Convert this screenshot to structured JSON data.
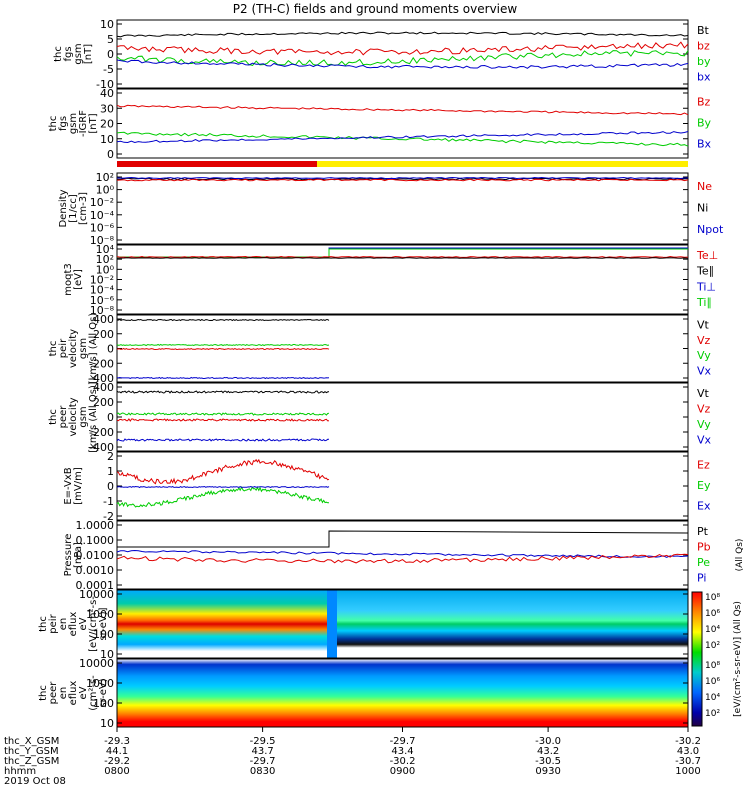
{
  "title": "P2 (TH-C) fields and ground moments overview",
  "colors": {
    "black": "#000000",
    "red": "#e00000",
    "green": "#00cc00",
    "blue": "#0000cc",
    "yellow": "#ffee00"
  },
  "panels": [
    {
      "ylabel": [
        "thc",
        "fgs",
        "gsm",
        "[nT]"
      ],
      "yticks": [
        "10",
        "5",
        "0",
        "-5",
        "-10"
      ],
      "ymin": -10,
      "ymax": 10,
      "legend": [
        {
          "text": "Bt",
          "color": "#000000"
        },
        {
          "text": "bz",
          "color": "#e00000"
        },
        {
          "text": "by",
          "color": "#00cc00"
        },
        {
          "text": "bx",
          "color": "#0000cc"
        }
      ]
    },
    {
      "ylabel": [
        "thc",
        "fgs",
        "gsm",
        "-IGRF",
        "[nT]"
      ],
      "yticks": [
        "40",
        "30",
        "20",
        "10",
        "0"
      ],
      "ymin": 0,
      "ymax": 40,
      "legend": [
        {
          "text": "Bz",
          "color": "#e00000"
        },
        {
          "text": "By",
          "color": "#00cc00"
        },
        {
          "text": "Bx",
          "color": "#0000cc"
        }
      ]
    },
    {
      "ylabel": [
        "Density",
        "[1/cc]",
        "[cm-3]"
      ],
      "yticks": [
        "10²",
        "10⁰",
        "10⁻²",
        "10⁻⁴",
        "10⁻⁶",
        "10⁻⁸"
      ],
      "legend": [
        {
          "text": "Ne",
          "color": "#e00000"
        },
        {
          "text": "Ni",
          "color": "#000000"
        },
        {
          "text": "Npot",
          "color": "#0000cc"
        }
      ]
    },
    {
      "ylabel": [
        "moqt3",
        "[eV]"
      ],
      "yticks": [
        "10⁴",
        "10²",
        "10⁰",
        "10⁻²",
        "10⁻⁴",
        "10⁻⁶",
        "10⁻⁸"
      ],
      "legend": [
        {
          "text": "Te⊥",
          "color": "#e00000"
        },
        {
          "text": "Te∥",
          "color": "#000000"
        },
        {
          "text": "Ti⊥",
          "color": "#0000cc"
        },
        {
          "text": "Ti∥",
          "color": "#00cc00"
        }
      ]
    },
    {
      "ylabel": [
        "thc",
        "peir",
        "velocity",
        "gsm",
        "[km/s] (All Qs)"
      ],
      "yticks": [
        "400",
        "200",
        "0",
        "-200",
        "-400"
      ],
      "legend": [
        {
          "text": "Vt",
          "color": "#000000"
        },
        {
          "text": "Vz",
          "color": "#e00000"
        },
        {
          "text": "Vy",
          "color": "#00cc00"
        },
        {
          "text": "Vx",
          "color": "#0000cc"
        }
      ]
    },
    {
      "ylabel": [
        "thc",
        "peer",
        "velocity",
        "gsm",
        "[km/s (All Qs)]"
      ],
      "yticks": [
        "400",
        "200",
        "0",
        "-200",
        "-400"
      ],
      "legend": [
        {
          "text": "Vt",
          "color": "#000000"
        },
        {
          "text": "Vz",
          "color": "#e00000"
        },
        {
          "text": "Vy",
          "color": "#00cc00"
        },
        {
          "text": "Vx",
          "color": "#0000cc"
        }
      ]
    },
    {
      "ylabel": [
        "E=-VxB",
        "[mV/m]"
      ],
      "yticks": [
        "2",
        "1",
        "0",
        "-1",
        "-2"
      ],
      "legend": [
        {
          "text": "Ez",
          "color": "#e00000"
        },
        {
          "text": "Ey",
          "color": "#00cc00"
        },
        {
          "text": "Ex",
          "color": "#0000cc"
        }
      ]
    },
    {
      "ylabel": [
        "Pressure",
        "[nPa]"
      ],
      "yticks": [
        "1.0000",
        "0.1000",
        "0.0100",
        "0.0010",
        "0.0001"
      ],
      "legend": [
        {
          "text": "Pt",
          "color": "#000000"
        },
        {
          "text": "Pb",
          "color": "#e00000"
        },
        {
          "text": "Pe",
          "color": "#00cc00"
        },
        {
          "text": "Pi",
          "color": "#0000cc"
        }
      ],
      "rightlabel": "(All Qs)"
    },
    {
      "ylabel": [
        "thc",
        "peir",
        "en",
        "eflux",
        "eV",
        "[eV/(cm²-s-",
        "sr-eV)]"
      ],
      "yticks": [
        "10000",
        "1000",
        "100",
        "10"
      ]
    },
    {
      "ylabel": [
        "thc",
        "peer",
        "en",
        "eflux",
        "eV",
        "(cm²-s-",
        "sr-eV)"
      ],
      "yticks": [
        "10000",
        "1000",
        "100",
        "10"
      ]
    }
  ],
  "colorbar": {
    "ticks_top": [
      "10⁸",
      "10⁶",
      "10⁴",
      "10²"
    ],
    "ticks_bottom": [
      "10⁸",
      "10⁶",
      "10⁴",
      "10²"
    ],
    "label": "[eV/(cm²-s-sr-eV)] (All Qs)"
  },
  "xaxis": {
    "rows": [
      {
        "label": "thc_X_GSM",
        "values": [
          "-29.3",
          "-29.5",
          "-29.7",
          "-30.0",
          "-30.2"
        ]
      },
      {
        "label": "thc_Y_GSM",
        "values": [
          "44.1",
          "43.7",
          "43.4",
          "43.2",
          "43.0"
        ]
      },
      {
        "label": "thc_Z_GSM",
        "values": [
          "-29.2",
          "-29.7",
          "-30.2",
          "-30.5",
          "-30.7"
        ]
      },
      {
        "label": "hhmm",
        "values": [
          "0800",
          "0830",
          "0900",
          "0930",
          "1000"
        ]
      }
    ],
    "date": "2019 Oct 08"
  },
  "chart_data": {
    "type": "line",
    "title": "P2 (TH-C) fields and ground moments overview",
    "x_time_hhmm": [
      "0800",
      "0830",
      "0900",
      "0930",
      "1000"
    ],
    "series": [
      {
        "name": "Bt",
        "panel": "fgs gsm",
        "approx": [
          4.5,
          5,
          6,
          5,
          4
        ]
      },
      {
        "name": "bz",
        "panel": "fgs gsm",
        "approx": [
          3,
          2,
          -1,
          0,
          -1
        ]
      },
      {
        "name": "by",
        "panel": "fgs gsm",
        "approx": [
          -1,
          -3,
          -3,
          -1,
          0
        ]
      },
      {
        "name": "bx",
        "panel": "fgs gsm",
        "approx": [
          -1,
          -5,
          -6,
          -2,
          -2
        ]
      },
      {
        "name": "Bz",
        "panel": "fgs gsm -IGRF",
        "approx": [
          27,
          31,
          30,
          25,
          26
        ]
      },
      {
        "name": "By",
        "panel": "fgs gsm -IGRF",
        "approx": [
          12,
          16,
          13,
          10,
          7
        ]
      },
      {
        "name": "Bx",
        "panel": "fgs gsm -IGRF",
        "approx": [
          6,
          4,
          4,
          15,
          14
        ]
      }
    ]
  }
}
